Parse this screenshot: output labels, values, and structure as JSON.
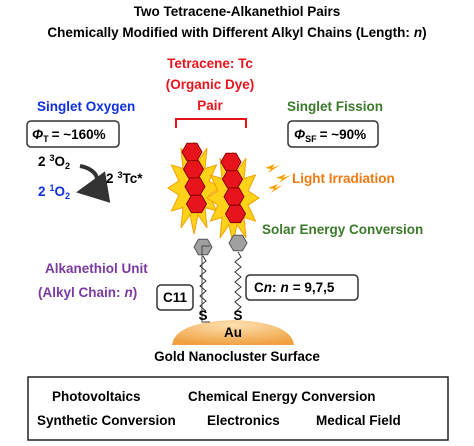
{
  "title": {
    "line1": "Two Tetracene-Alkanethiol Pairs",
    "line2": {
      "before": "Chemically Modified with Different Alkyl Chains (Length:",
      "variable": "n",
      "after": ")"
    }
  },
  "dye_label": [
    "Tetracene: Tc",
    "(Organic Dye)",
    "Pair"
  ],
  "singlet_oxygen": {
    "label": "Singlet Oxygen",
    "yield": {
      "symbol": "Φ",
      "subscript": "T",
      "value": "= ~160%"
    },
    "reactant": {
      "coefficient": "2",
      "superscript": "3",
      "species": "O",
      "subscript": "2"
    },
    "product": {
      "coefficient": "2",
      "superscript": "1",
      "species": "O",
      "subscript": "2"
    },
    "triplet": {
      "coefficient": "2",
      "superscript": "3",
      "species": "Tc*"
    }
  },
  "singlet_fission": {
    "label": "Singlet Fission",
    "yield": {
      "symbol": "Φ",
      "subscript": "SF",
      "value": "= ~90%"
    }
  },
  "light_irradiation": "Light Irradiation",
  "solar_energy": "Solar Energy Conversion",
  "alkanethiol": {
    "label": "Alkanethiol Unit",
    "chain": {
      "before": "(Alkyl Chain:",
      "variable": "n",
      "after": ")"
    },
    "c11": "C11",
    "cn": {
      "c": "C",
      "n1": "n",
      "colon": ":",
      "n2": "n",
      "value": "= 9,7,5"
    }
  },
  "sulfur": [
    "S",
    "S"
  ],
  "gold": "Au",
  "surface": "Gold Nanocluster Surface",
  "applications": [
    [
      "Photovoltaics",
      "Chemical Energy Conversion"
    ],
    [
      "Synthetic Conversion",
      "Electronics",
      "Medical Field"
    ]
  ]
}
